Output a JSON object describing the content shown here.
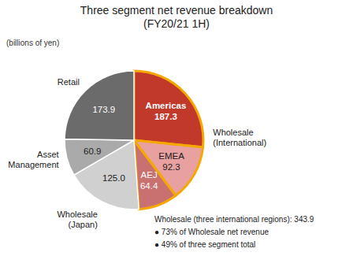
{
  "chart_data": {
    "type": "pie",
    "title": "Three segment net revenue breakdown\n(FY20/21 1H)",
    "subtitle": "(billions of yen)",
    "categories": [
      "Americas",
      "EMEA",
      "AEJ",
      "Wholesale\n(Japan)",
      "Asset\nManagement",
      "Retail"
    ],
    "values": [
      187.3,
      92.3,
      64.4,
      125.0,
      60.9,
      173.9
    ],
    "value_labels": [
      "187.3",
      "92.3",
      "64.4",
      "125.0",
      "60.9",
      "173.9"
    ],
    "colors": [
      "#c0392b",
      "#e8a0a0",
      "#c97070",
      "#d0d0d0",
      "#aaaaaa",
      "#6b6b6b"
    ],
    "data_labels": true,
    "groups": [
      {
        "name": "Wholesale\n(International)",
        "categories": [
          "Americas",
          "EMEA",
          "AEJ"
        ],
        "color": "#f5a800"
      }
    ],
    "annotation": "Wholesale (three international regions): 343.9\n● 73% of Wholesale net revenue\n● 49% of three segment total"
  }
}
